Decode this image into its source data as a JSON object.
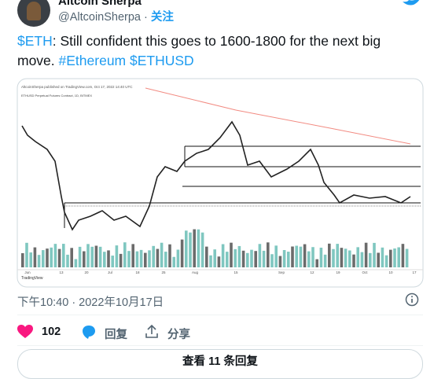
{
  "header": {
    "name": "Altcoin Sherpa",
    "handle": "@AltcoinSherpa",
    "follow": "关注"
  },
  "tweet": {
    "parts": [
      "$ETH",
      ": Still confident this goes to 1600-1800 for the next big move. ",
      "#Ethereum",
      " ",
      "$ETHUSD"
    ]
  },
  "chart_image": {
    "caption": "AltcoinSherpa published on TradingView.com, Oct 17, 2022 14:40 UTC",
    "symbol": "ETHUSD Perpetual Futures Contract, 1D, BITMEX",
    "x_labels": [
      "Jun",
      "13",
      "20",
      "Jul",
      "18",
      "25",
      "Aug",
      "15",
      "Sep",
      "12",
      "19",
      "Oct",
      "10",
      "17"
    ],
    "brand": "TradingView"
  },
  "timestamp": "下午10:40 · 2022年10月17日",
  "actions": {
    "likes": "102",
    "reply": "回复",
    "share": "分享"
  },
  "more_replies": "查看 11 条回复"
}
